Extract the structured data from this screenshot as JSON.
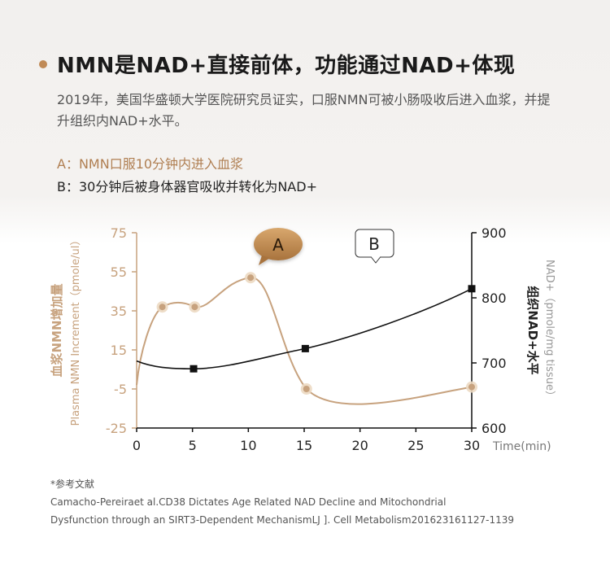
{
  "heading": {
    "title": "NMN是NAD+直接前体，功能通过NAD+体现",
    "description": "2019年，美国华盛顿大学医院研究员证实，口服NMN可被小肠吸收后进入血浆，并提升组织内NAD+水平。",
    "point_a": "A：NMN口服10分钟内进入血浆",
    "point_b": "B：30分钟后被身体器官吸收并转化为NAD+"
  },
  "colors": {
    "gold": "#c7a27e",
    "gold_dark": "#9a6a3a",
    "black": "#111111",
    "grey_text": "#999999"
  },
  "chart_data": {
    "type": "line",
    "x": [
      0,
      5,
      10,
      15,
      20,
      25,
      30
    ],
    "x_tick_labels": [
      "0",
      "5",
      "10",
      "15",
      "20",
      "25",
      "30"
    ],
    "xlabel": "Time(min)",
    "xlim": [
      0,
      30
    ],
    "y_left": {
      "label_cn": "血浆NMN增加量",
      "label_en": "Plasma NMN Increment（pmole/ul）",
      "ticks": [
        75,
        55,
        35,
        15,
        -5,
        -25
      ],
      "lim": [
        -25,
        75
      ]
    },
    "y_right": {
      "label_cn": "组织NAD+水平",
      "label_en": "NAD+（pmole/mg tissue）",
      "ticks": [
        900,
        800,
        700,
        600
      ],
      "lim": [
        600,
        900
      ]
    },
    "series": [
      {
        "axis": "left",
        "color": "#c7a27e",
        "points": [
          [
            2.3,
            37
          ],
          [
            5.2,
            37
          ],
          [
            10.2,
            52
          ],
          [
            15.2,
            -5
          ],
          [
            30,
            -4
          ]
        ]
      },
      {
        "axis": "right",
        "color": "#111111",
        "points": [
          [
            5.1,
            691
          ],
          [
            15.1,
            722
          ],
          [
            30,
            814
          ]
        ]
      }
    ],
    "annotations": [
      {
        "label": "A",
        "style": "gold-bubble",
        "x": 11.5,
        "y": 712
      },
      {
        "label": "B",
        "style": "outlined-bubble",
        "x": 24.5,
        "y": 780
      }
    ]
  },
  "references": {
    "title": "*参考文献",
    "line1": "Camacho-Pereiraet al.CD38 Dictates Age Related NAD Decline and Mitochondrial",
    "line2": "Dysfunction through an SIRT3-Dependent MechanismLJ ]. Cell Metabolism201623161127-1139"
  }
}
